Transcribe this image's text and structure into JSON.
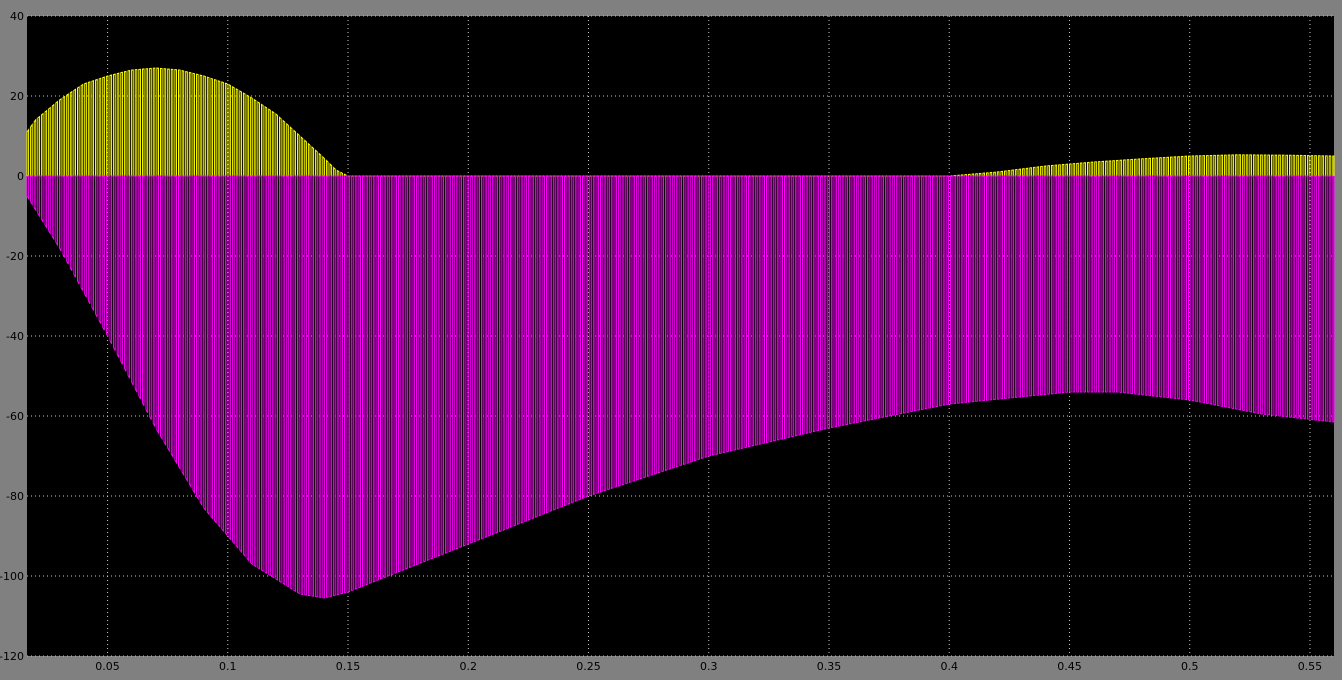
{
  "chart_data": {
    "type": "line",
    "title": "",
    "xlabel": "",
    "ylabel": "",
    "xlim": [
      0.0165,
      0.56
    ],
    "ylim": [
      -120,
      40
    ],
    "grid": true,
    "legend": "none",
    "x_ticks": [
      0.05,
      0.1,
      0.15,
      0.2,
      0.25,
      0.3,
      0.35,
      0.4,
      0.45,
      0.5,
      0.55
    ],
    "x_tick_labels": [
      "0.05",
      "0.1",
      "0.15",
      "0.2",
      "0.25",
      "0.3",
      "0.35",
      "0.4",
      "0.45",
      "0.5",
      "0.55"
    ],
    "y_ticks": [
      40,
      20,
      0,
      -20,
      -40,
      -60,
      -80,
      -100,
      -120
    ],
    "y_tick_labels": [
      "40",
      "20",
      "0",
      "-20",
      "-40",
      "-60",
      "-80",
      "-100",
      "-120"
    ],
    "colors": {
      "background": "#000000",
      "frame": "#808080",
      "grid": "#c8c8c8",
      "series_1": "#ffff00",
      "series_2": "#ff00ff"
    },
    "switching_period": 0.0015,
    "series": [
      {
        "color": "#ffff00",
        "envelope_x": [
          0.0165,
          0.02,
          0.03,
          0.04,
          0.05,
          0.06,
          0.07,
          0.08,
          0.09,
          0.1,
          0.11,
          0.12,
          0.13,
          0.14,
          0.145,
          0.15,
          0.2,
          0.3,
          0.4,
          0.42,
          0.44,
          0.46,
          0.48,
          0.5,
          0.52,
          0.54,
          0.56
        ],
        "envelope_y": [
          11,
          14,
          19,
          23,
          25,
          26.5,
          27,
          26.5,
          25,
          23,
          19.5,
          15.5,
          10,
          4.5,
          1.5,
          0,
          0,
          0,
          0,
          1,
          2.5,
          3.5,
          4.3,
          5,
          5.3,
          5.2,
          5
        ]
      },
      {
        "color": "#ff00ff",
        "envelope_x": [
          0.0165,
          0.03,
          0.05,
          0.07,
          0.09,
          0.11,
          0.13,
          0.14,
          0.15,
          0.2,
          0.25,
          0.3,
          0.35,
          0.4,
          0.45,
          0.47,
          0.5,
          0.53,
          0.56
        ],
        "envelope_y": [
          -5,
          -18,
          -40,
          -63,
          -83,
          -97,
          -104.5,
          -105.5,
          -104,
          -92,
          -80,
          -70,
          -63,
          -57,
          -54,
          -54,
          -56,
          -59.5,
          -61.5
        ]
      }
    ]
  }
}
